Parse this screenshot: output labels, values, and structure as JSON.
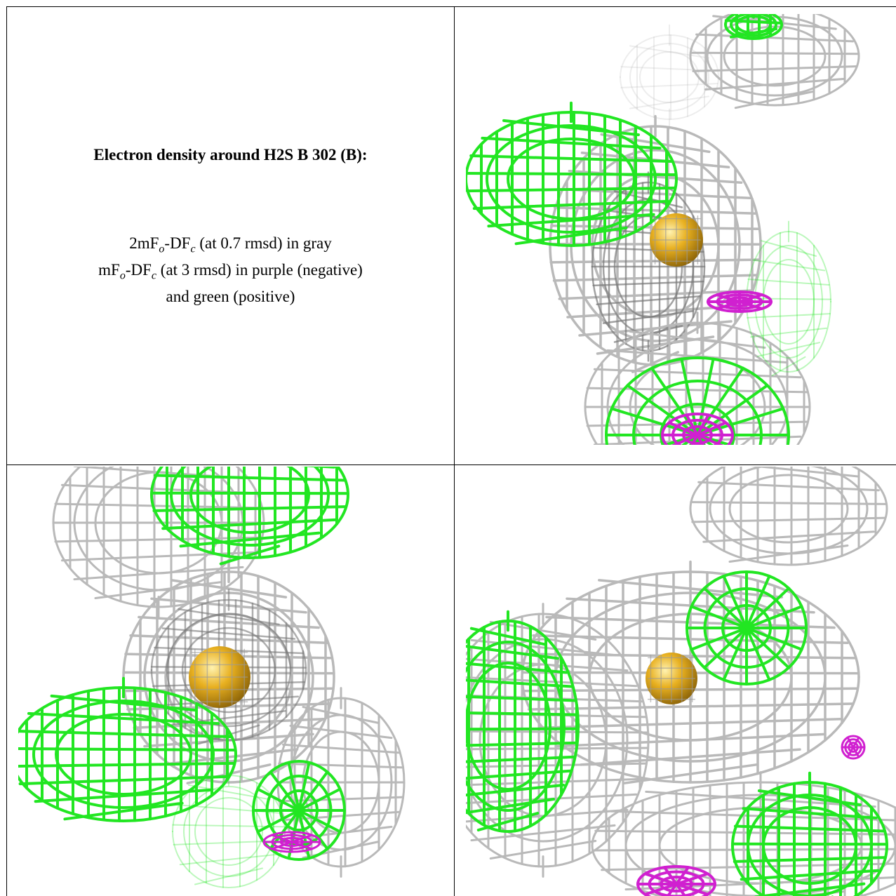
{
  "legend": {
    "title": "Electron density around H2S B 302 (B):",
    "line1": {
      "a": "2mF",
      "b": "o",
      "c": "-DF",
      "d": "c",
      "e": " (at 0.7 rmsd) in gray"
    },
    "line2": {
      "a": "mF",
      "b": "o",
      "c": "-DF",
      "d": "c",
      "e": " (at 3 rmsd) in purple (negative)"
    },
    "line3": "and green (positive)"
  },
  "colors": {
    "gray_mesh": "#b9b9b9",
    "dark_mesh": "#7a7a7a",
    "positive_mesh": "#22e622",
    "negative_mesh": "#d020d0",
    "atom": "#e8b020"
  },
  "panels": [
    {
      "name": "view-top-right",
      "atom": "sulfur-atom"
    },
    {
      "name": "view-bottom-left",
      "atom": "sulfur-atom"
    },
    {
      "name": "view-bottom-right",
      "atom": "sulfur-atom"
    }
  ]
}
